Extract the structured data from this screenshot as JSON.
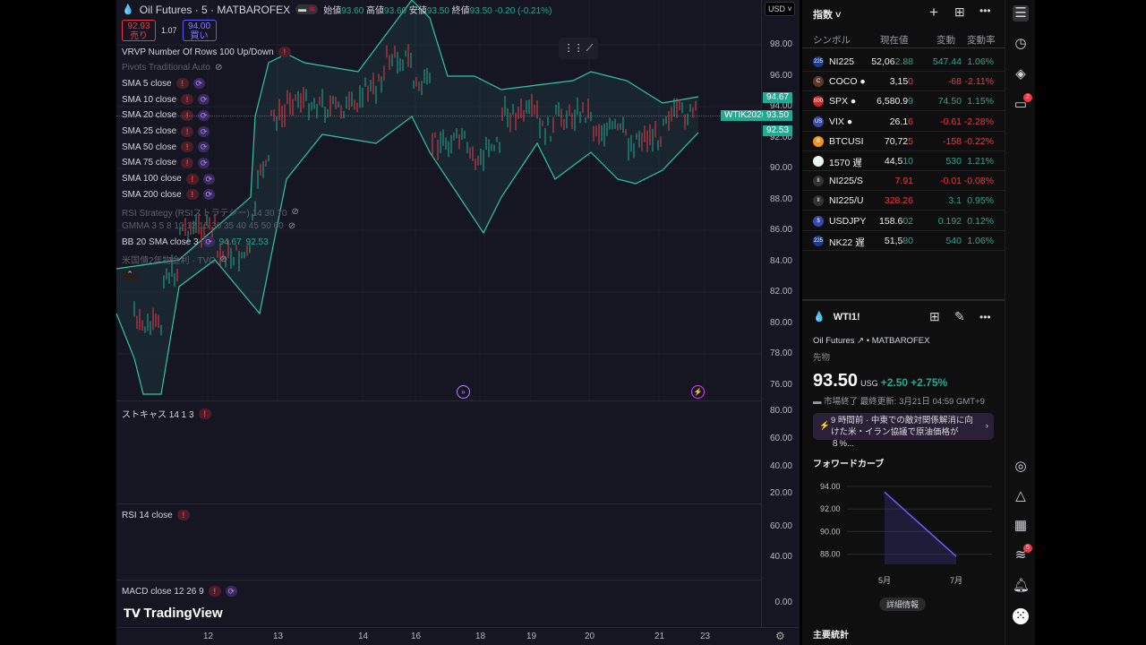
{
  "header": {
    "symbol": "Oil Futures · 5 · MATBAROFEX",
    "open_label": "始値",
    "open": "93.60",
    "high_label": "高値",
    "high": "93.60",
    "low_label": "安値",
    "low": "93.50",
    "close_label": "終値",
    "close": "93.50",
    "change": "-0.20 (-0.21%)",
    "currency": "USD"
  },
  "trade": {
    "sell_price": "92.93",
    "sell_label": "売り",
    "spread": "1.07",
    "buy_price": "94.00",
    "buy_label": "買い"
  },
  "indicators": [
    {
      "label": "VRVP Number Of Rows 100 Up/Down",
      "state": "warn"
    },
    {
      "label": "Pivots Traditional Auto",
      "state": "hidden"
    },
    {
      "label": "SMA 5 close",
      "state": "warn-sync"
    },
    {
      "label": "SMA 10 close",
      "state": "warn-sync"
    },
    {
      "label": "SMA 20 close",
      "state": "warn-sync"
    },
    {
      "label": "SMA 25 close",
      "state": "warn-sync"
    },
    {
      "label": "SMA 50 close",
      "state": "warn-sync"
    },
    {
      "label": "SMA 75 close",
      "state": "warn-sync"
    },
    {
      "label": "SMA 100 close",
      "state": "warn-sync"
    },
    {
      "label": "SMA 200 close",
      "state": "warn-sync"
    },
    {
      "label": "RSI Strategy (RSIストラテジー) 14 30 70",
      "state": "hidden"
    },
    {
      "label": "GMMA 3 5 8 10 12 15 30 35 40 45 50 60",
      "state": "hidden"
    },
    {
      "label": "BB 20 SMA close 3",
      "state": "sync",
      "values": [
        "94.67",
        "92.53"
      ]
    },
    {
      "label": "米国債2年物金利 · TVC",
      "state": "hidden"
    }
  ],
  "price_axis": [
    "98.00",
    "96.00",
    "94.00",
    "92.00",
    "90.00",
    "88.00",
    "86.00",
    "84.00",
    "82.00",
    "80.00",
    "78.00",
    "76.00"
  ],
  "price_tags": {
    "upper": "94.67",
    "symbol": "WTIK2026",
    "last": "93.50",
    "lower": "92.53"
  },
  "stoch": {
    "label": "ストキャス 14 1 3",
    "ticks": [
      "80.00",
      "60.00",
      "40.00",
      "20.00"
    ]
  },
  "rsi": {
    "label": "RSI 14 close",
    "ticks": [
      "60.00",
      "40.00"
    ]
  },
  "macd": {
    "label": "MACD close 12 26 9",
    "ticks": [
      "0.00"
    ]
  },
  "time_axis": [
    "12",
    "13",
    "14",
    "16",
    "18",
    "19",
    "20",
    "21",
    "23"
  ],
  "logo": "TradingView",
  "colors": {
    "up": "#22ab94",
    "down": "#f23645",
    "band": "#2fc7a8",
    "accent": "#7b3fe4"
  },
  "watchlist": {
    "title": "指数",
    "columns": [
      "シンボル",
      "現在値",
      "変動",
      "変動率"
    ],
    "rows": [
      {
        "icon": "225",
        "color": "#1e3a8a",
        "sym": "NI225",
        "p1": "52,06",
        "p2": "2.88",
        "chg": "547.44",
        "pct": "1.06%",
        "dir": "up"
      },
      {
        "icon": "C",
        "color": "#5b3a29",
        "sym": "COCO ●",
        "p1": "3,15",
        "p2": "0",
        "chg": "-68",
        "pct": "-2.11%",
        "dir": "down"
      },
      {
        "icon": "500",
        "color": "#c62828",
        "sym": "SPX ●",
        "p1": "6,580.9",
        "p2": "9",
        "chg": "74.50",
        "pct": "1.15%",
        "dir": "up"
      },
      {
        "icon": "US",
        "color": "#3949ab",
        "sym": "VIX ●",
        "p1": "26.1",
        "p2": "6",
        "chg": "-0.61",
        "pct": "-2.28%",
        "dir": "down"
      },
      {
        "icon": "B",
        "color": "#f7931a",
        "sym": "BTCUSI",
        "p1": "70,72",
        "p2": "5",
        "chg": "-158",
        "pct": "-0.22%",
        "dir": "down"
      },
      {
        "icon": "JP",
        "color": "#e8f5e9",
        "sym": "1570 遅",
        "p1": "44,5",
        "p2": "10",
        "chg": "530",
        "pct": "1.21%",
        "dir": "up"
      },
      {
        "icon": "II",
        "color": "#333",
        "sym": "NI225/S",
        "p1": "",
        "p2": "7.91",
        "chg": "-0.01",
        "pct": "-0.08%",
        "dir": "down"
      },
      {
        "icon": "II",
        "color": "#333",
        "sym": "NI225/U",
        "p1": "",
        "p2": "328.26",
        "chg": "3.1",
        "pct": "0.95%",
        "dir": "up",
        "p2red": true
      },
      {
        "icon": "$",
        "color": "#3949ab",
        "sym": "USDJPY",
        "p1": "158.6",
        "p2": "02",
        "chg": "0.192",
        "pct": "0.12%",
        "dir": "up"
      },
      {
        "icon": "225",
        "color": "#1e3a8a",
        "sym": "NK22 遅",
        "p1": "51,5",
        "p2": "80",
        "chg": "540",
        "pct": "1.06%",
        "dir": "up"
      }
    ]
  },
  "details": {
    "symbol": "WTI1!",
    "name": "Oil Futures",
    "exchange": "MATBAROFEX",
    "type": "先物",
    "price": "93.50",
    "unit": "USG",
    "change": "+2.50",
    "pct": "+2.75%",
    "status": "市場終了",
    "updated": "最終更新: 3月21日 04:59 GMT+9",
    "news": "9 時間前 · 中東での敵対関係解消に向けた米・イラン協議で原油価格が８%...",
    "forward_title": "フォワードカーブ",
    "forward_ticks": [
      "94.00",
      "92.00",
      "90.00",
      "88.00"
    ],
    "forward_x": [
      "5月",
      "7月"
    ],
    "more": "詳細情報",
    "stats": "主要統計"
  },
  "chart_data": {
    "type": "line",
    "title": "フォワードカーブ",
    "categories": [
      "5月",
      "7月"
    ],
    "values": [
      93.5,
      87.8
    ],
    "ylim": [
      87,
      95
    ]
  },
  "rail_badges": {
    "chat": "2",
    "feed": "5"
  }
}
